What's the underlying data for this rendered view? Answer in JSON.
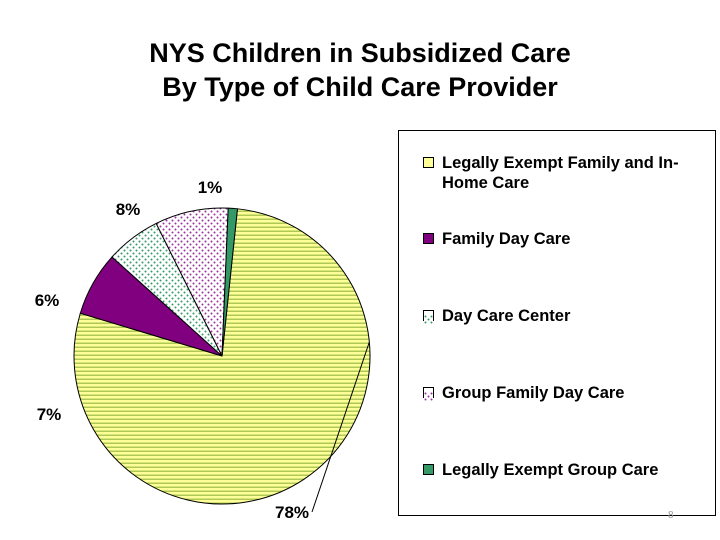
{
  "title": {
    "line1": "NYS Children in Subsidized Care",
    "line2": "By Type of Child Care Provider"
  },
  "page_number": "8",
  "chart_data": {
    "type": "pie",
    "title": "NYS Children in Subsidized Care By Type of Child Care Provider",
    "legend_position": "right",
    "series": [
      {
        "name": "Legally Exempt Family and In-Home Care",
        "value": 78,
        "label": "78%",
        "color": "#ffff99",
        "pattern": "horizontal-lines",
        "pattern_color": "#99bb44"
      },
      {
        "name": "Family Day Care",
        "value": 7,
        "label": "7%",
        "color": "#800080",
        "pattern": "solid"
      },
      {
        "name": "Day Care Center",
        "value": 6,
        "label": "6%",
        "color": "#ffffff",
        "pattern": "dots",
        "pattern_color": "#339966"
      },
      {
        "name": "Group Family Day Care",
        "value": 8,
        "label": "8%",
        "color": "#ffffff",
        "pattern": "dots",
        "pattern_color": "#993399"
      },
      {
        "name": "Legally Exempt Group Care",
        "value": 1,
        "label": "1%",
        "color": "#339966",
        "pattern": "solid"
      }
    ]
  }
}
